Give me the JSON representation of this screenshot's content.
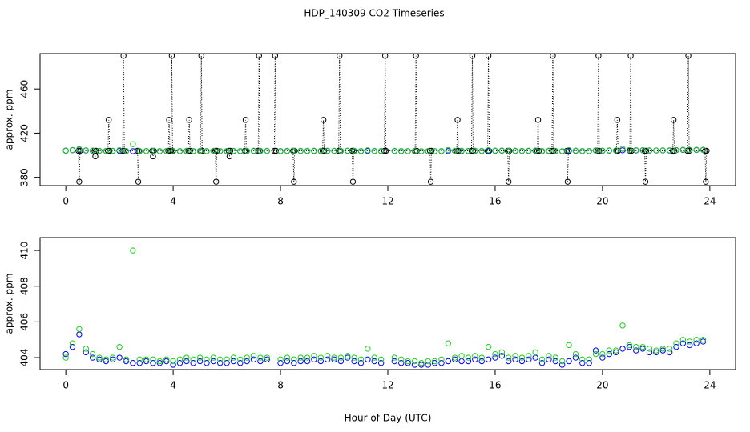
{
  "chart_data": [
    {
      "type": "line",
      "title": "HDP_140309  CO2 Timeseries",
      "ylabel": "approx. ppm",
      "xlim": [
        -0.96,
        24.96
      ],
      "xticks": [
        0,
        4,
        8,
        12,
        16,
        20,
        24
      ],
      "ylim": [
        372.5,
        492
      ],
      "yticks": [
        380,
        420,
        460
      ],
      "x": [
        0.47,
        0.5,
        0.53,
        1.07,
        1.1,
        1.13,
        1.57,
        1.6,
        1.63,
        2.12,
        2.15,
        2.18,
        2.67,
        2.7,
        2.73,
        3.22,
        3.25,
        3.28,
        3.82,
        3.85,
        3.88,
        3.92,
        3.95,
        3.98,
        4.57,
        4.6,
        4.63,
        5.02,
        5.05,
        5.08,
        5.57,
        5.6,
        5.63,
        6.07,
        6.1,
        6.13,
        6.67,
        6.7,
        6.73,
        7.17,
        7.2,
        7.23,
        7.77,
        7.8,
        7.83,
        8.47,
        8.5,
        8.53,
        9.57,
        9.6,
        9.63,
        10.17,
        10.2,
        10.23,
        10.67,
        10.7,
        10.73,
        11.87,
        11.9,
        11.93,
        13.02,
        13.05,
        13.08,
        13.57,
        13.6,
        13.63,
        14.57,
        14.6,
        14.63,
        15.12,
        15.15,
        15.18,
        15.72,
        15.75,
        15.78,
        16.47,
        16.5,
        16.53,
        17.57,
        17.6,
        17.63,
        18.12,
        18.15,
        18.18,
        18.67,
        18.7,
        18.73,
        19.82,
        19.85,
        19.88,
        20.52,
        20.55,
        20.58,
        21.02,
        21.05,
        21.08,
        21.57,
        21.6,
        21.63,
        22.62,
        22.65,
        22.68,
        23.17,
        23.2,
        23.23,
        23.82,
        23.85,
        23.88
      ],
      "series": [
        {
          "color": "#000000",
          "linestyle": "dotted",
          "values": [
            404,
            376,
            404,
            404,
            399,
            404,
            404,
            432,
            404,
            404,
            490,
            404,
            404,
            376,
            404,
            404,
            399,
            404,
            404,
            432,
            404,
            404,
            490,
            404,
            404,
            432,
            404,
            404,
            490,
            404,
            404,
            376,
            404,
            404,
            399,
            404,
            404,
            432,
            404,
            404,
            490,
            404,
            404,
            490,
            404,
            404,
            376,
            404,
            404,
            432,
            404,
            404,
            490,
            404,
            404,
            376,
            404,
            404,
            490,
            404,
            404,
            490,
            404,
            404,
            376,
            404,
            404,
            432,
            404,
            404,
            490,
            404,
            404,
            490,
            404,
            404,
            376,
            404,
            404,
            432,
            404,
            404,
            490,
            404,
            404,
            376,
            404,
            404,
            490,
            404,
            404,
            432,
            404,
            404,
            490,
            404,
            404,
            376,
            404,
            404,
            432,
            404,
            404,
            490,
            404,
            404,
            376,
            404
          ]
        }
      ]
    },
    {
      "type": "scatter",
      "ylabel": "approx. ppm",
      "xlabel": "Hour of Day (UTC)",
      "xlim": [
        -0.96,
        24.96
      ],
      "xticks": [
        0,
        4,
        8,
        12,
        16,
        20,
        24
      ],
      "ylim": [
        403.33,
        410.72
      ],
      "yticks": [
        404,
        406,
        408,
        410
      ],
      "x": [
        0,
        0.25,
        0.5,
        0.75,
        1,
        1.25,
        1.5,
        1.75,
        2,
        2.25,
        2.5,
        2.75,
        3,
        3.25,
        3.5,
        3.75,
        4,
        4.25,
        4.5,
        4.75,
        5,
        5.25,
        5.5,
        5.75,
        6,
        6.25,
        6.5,
        6.75,
        7,
        7.25,
        7.5,
        7.75,
        8,
        8.25,
        8.5,
        8.75,
        9,
        9.25,
        9.5,
        9.75,
        10,
        10.25,
        10.5,
        10.75,
        11,
        11.25,
        11.5,
        11.75,
        12,
        12.25,
        12.5,
        12.75,
        13,
        13.25,
        13.5,
        13.75,
        14,
        14.25,
        14.5,
        14.75,
        15,
        15.25,
        15.5,
        15.75,
        16,
        16.25,
        16.5,
        16.75,
        17,
        17.25,
        17.5,
        17.75,
        18,
        18.25,
        18.5,
        18.75,
        19,
        19.25,
        19.5,
        19.75,
        20,
        20.25,
        20.5,
        20.75,
        21,
        21.25,
        21.5,
        21.75,
        22,
        22.25,
        22.5,
        22.75,
        23,
        23.25,
        23.5,
        23.75
      ],
      "series": [
        {
          "color": "#0000ff",
          "values": [
            404.2,
            404.6,
            405.3,
            404.3,
            404.0,
            403.9,
            403.8,
            403.9,
            404.0,
            403.8,
            403.7,
            403.7,
            403.8,
            403.7,
            403.7,
            403.8,
            403.6,
            403.7,
            403.8,
            403.7,
            403.8,
            403.7,
            403.8,
            403.7,
            403.7,
            403.8,
            403.7,
            403.8,
            403.9,
            403.8,
            403.9,
            null,
            403.7,
            403.8,
            403.7,
            403.8,
            403.8,
            403.9,
            403.8,
            403.9,
            403.9,
            403.8,
            404.0,
            403.8,
            403.7,
            403.9,
            403.8,
            403.7,
            null,
            403.8,
            403.7,
            403.7,
            403.6,
            403.6,
            403.6,
            403.7,
            403.7,
            403.8,
            403.9,
            403.8,
            403.8,
            403.9,
            403.8,
            403.9,
            404.0,
            404.1,
            403.8,
            403.9,
            403.8,
            403.9,
            404.0,
            403.7,
            403.9,
            403.8,
            403.6,
            403.8,
            404.0,
            403.7,
            403.7,
            404.4,
            404.0,
            404.2,
            404.3,
            404.5,
            404.6,
            404.4,
            404.5,
            404.3,
            404.3,
            404.4,
            404.3,
            404.6,
            404.8,
            404.7,
            404.8,
            404.9
          ]
        },
        {
          "color": "#22cc22",
          "values": [
            404.0,
            404.8,
            405.6,
            404.5,
            404.2,
            404.0,
            403.9,
            404.0,
            404.6,
            403.9,
            410.0,
            403.9,
            403.9,
            403.9,
            403.8,
            403.9,
            403.8,
            403.9,
            404.0,
            403.9,
            404.0,
            403.9,
            404.0,
            403.9,
            403.9,
            404.0,
            403.9,
            404.0,
            404.1,
            404.0,
            404.0,
            null,
            403.9,
            404.0,
            403.9,
            404.0,
            404.0,
            404.1,
            404.0,
            404.1,
            404.0,
            404.0,
            404.1,
            404.0,
            403.9,
            404.5,
            404.0,
            403.9,
            null,
            404.0,
            403.9,
            403.8,
            403.8,
            403.7,
            403.8,
            403.8,
            403.9,
            404.8,
            404.0,
            404.1,
            404.0,
            404.1,
            404.0,
            404.6,
            404.2,
            404.3,
            404.0,
            404.1,
            404.0,
            404.1,
            404.3,
            403.9,
            404.1,
            404.0,
            403.8,
            404.7,
            404.2,
            403.9,
            403.9,
            404.2,
            404.2,
            404.4,
            404.4,
            405.8,
            404.7,
            404.6,
            404.6,
            404.5,
            404.4,
            404.5,
            404.5,
            404.8,
            405.0,
            404.9,
            405.0,
            405.0
          ]
        }
      ]
    }
  ]
}
